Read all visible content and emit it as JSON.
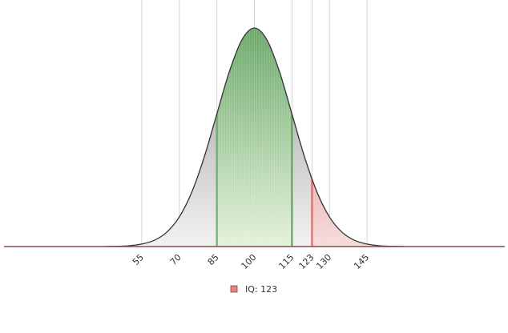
{
  "chart_data": {
    "type": "area",
    "x": [
      40,
      45,
      50,
      55,
      60,
      65,
      70,
      75,
      80,
      85,
      90,
      95,
      100,
      105,
      110,
      115,
      120,
      125,
      130,
      135,
      140,
      145,
      150,
      155,
      160
    ],
    "values": [
      0.001,
      0.003,
      0.01,
      0.03,
      0.076,
      0.175,
      0.36,
      0.663,
      1.093,
      1.613,
      2.13,
      2.516,
      2.66,
      2.516,
      2.13,
      1.613,
      1.093,
      0.663,
      0.36,
      0.175,
      0.076,
      0.03,
      0.01,
      0.003,
      0.001
    ],
    "color": "#333333",
    "xlim": [
      0,
      200
    ],
    "ylim": [
      0,
      2.66
    ],
    "xticks": [
      55,
      70,
      85,
      100,
      115,
      123,
      130,
      145
    ],
    "grid": true,
    "highlight": {
      "from": 85,
      "to": 115,
      "color": "#5a9e5a"
    },
    "score": {
      "value": 123,
      "label": "IQ: 123",
      "color": "#d9534f"
    }
  }
}
